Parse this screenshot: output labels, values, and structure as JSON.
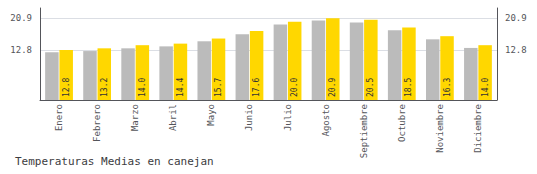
{
  "chart_data": {
    "type": "bar",
    "title": "Temperaturas Medias en canejan",
    "categories": [
      "Enero",
      "Febrero",
      "Marzo",
      "Abril",
      "Mayo",
      "Junio",
      "Julio",
      "Agosto",
      "Septiembre",
      "Octubre",
      "Noviembre",
      "Diciembre"
    ],
    "series": [
      {
        "color": "#BBBBBB",
        "values": [
          12.2,
          12.5,
          13.2,
          13.7,
          15.0,
          16.8,
          19.3,
          20.3,
          19.8,
          17.8,
          15.5,
          13.3
        ]
      },
      {
        "color": "#FFD700",
        "values": [
          12.8,
          13.2,
          14.0,
          14.4,
          15.7,
          17.6,
          20.0,
          20.9,
          20.5,
          18.5,
          16.3,
          14.0
        ],
        "data_labels": true,
        "value_labels": [
          "12.8",
          "13.2",
          "14.0",
          "14.4",
          "15.7",
          "17.6",
          "20.0",
          "20.9",
          "20.5",
          "18.5",
          "16.3",
          "14.0"
        ]
      }
    ],
    "ylim": [
      0,
      23.5
    ],
    "yticks": [
      12.8,
      20.9
    ],
    "y2lim": [
      0,
      23.5
    ],
    "y2ticks": [
      12.8,
      20.9
    ],
    "grid": true
  }
}
